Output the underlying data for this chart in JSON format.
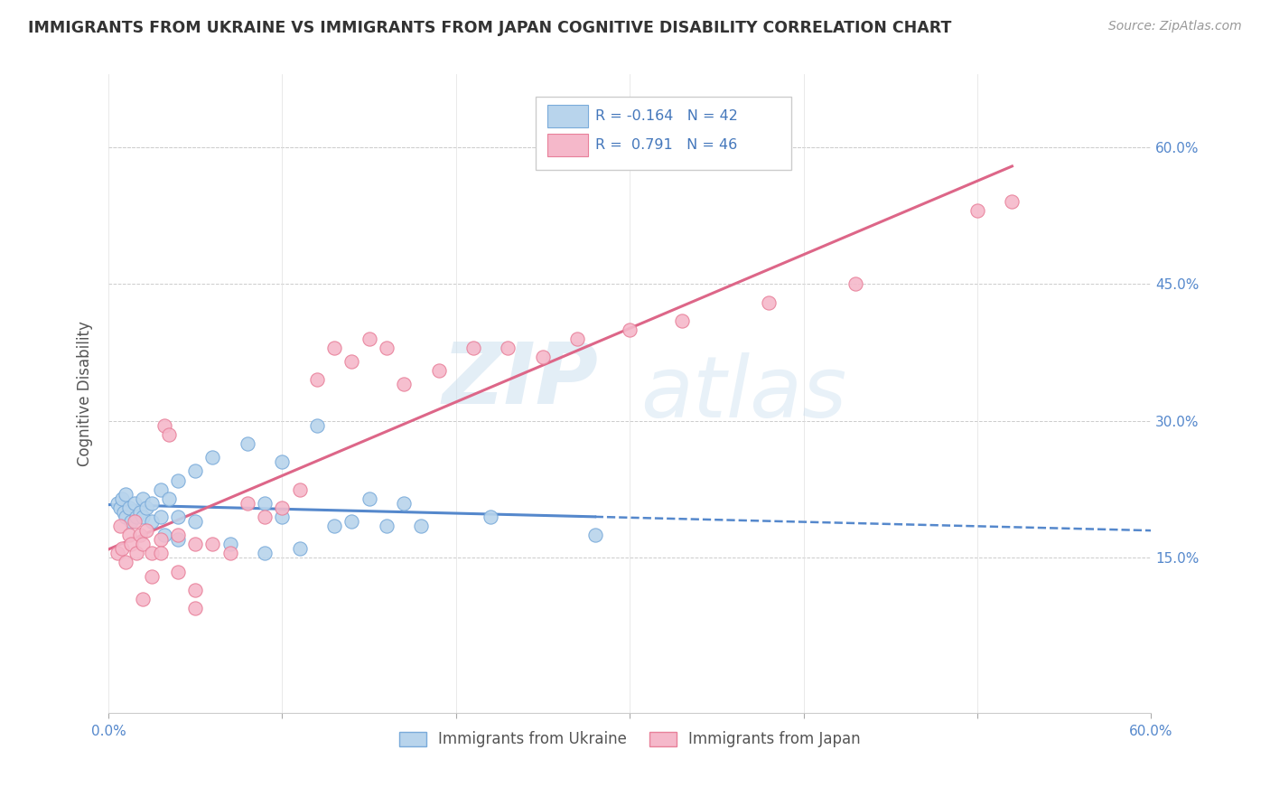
{
  "title": "IMMIGRANTS FROM UKRAINE VS IMMIGRANTS FROM JAPAN COGNITIVE DISABILITY CORRELATION CHART",
  "source": "Source: ZipAtlas.com",
  "ylabel": "Cognitive Disability",
  "x_min": 0.0,
  "x_max": 0.6,
  "y_min": -0.02,
  "y_max": 0.68,
  "x_ticks": [
    0.0,
    0.1,
    0.2,
    0.3,
    0.4,
    0.5,
    0.6
  ],
  "x_tick_labels": [
    "0.0%",
    "",
    "",
    "",
    "",
    "",
    "60.0%"
  ],
  "y_ticks_right": [
    0.15,
    0.3,
    0.45,
    0.6
  ],
  "y_tick_labels_right": [
    "15.0%",
    "30.0%",
    "45.0%",
    "60.0%"
  ],
  "ukraine_color": "#b8d4ec",
  "ukraine_color_edge": "#7aabda",
  "japan_color": "#f5b8ca",
  "japan_color_edge": "#e8809a",
  "ukraine_R": "-0.164",
  "ukraine_N": "42",
  "japan_R": "0.791",
  "japan_N": "46",
  "ukraine_line_color": "#5588cc",
  "japan_line_color": "#dd6688",
  "ukraine_scatter": [
    [
      0.005,
      0.21
    ],
    [
      0.007,
      0.205
    ],
    [
      0.008,
      0.215
    ],
    [
      0.009,
      0.2
    ],
    [
      0.01,
      0.22
    ],
    [
      0.01,
      0.195
    ],
    [
      0.012,
      0.205
    ],
    [
      0.013,
      0.19
    ],
    [
      0.015,
      0.21
    ],
    [
      0.016,
      0.195
    ],
    [
      0.018,
      0.2
    ],
    [
      0.02,
      0.215
    ],
    [
      0.02,
      0.195
    ],
    [
      0.022,
      0.205
    ],
    [
      0.025,
      0.21
    ],
    [
      0.025,
      0.19
    ],
    [
      0.03,
      0.225
    ],
    [
      0.03,
      0.195
    ],
    [
      0.032,
      0.175
    ],
    [
      0.035,
      0.215
    ],
    [
      0.04,
      0.235
    ],
    [
      0.04,
      0.195
    ],
    [
      0.04,
      0.17
    ],
    [
      0.05,
      0.245
    ],
    [
      0.05,
      0.19
    ],
    [
      0.06,
      0.26
    ],
    [
      0.07,
      0.165
    ],
    [
      0.08,
      0.275
    ],
    [
      0.09,
      0.21
    ],
    [
      0.09,
      0.155
    ],
    [
      0.1,
      0.255
    ],
    [
      0.1,
      0.195
    ],
    [
      0.11,
      0.16
    ],
    [
      0.12,
      0.295
    ],
    [
      0.13,
      0.185
    ],
    [
      0.14,
      0.19
    ],
    [
      0.15,
      0.215
    ],
    [
      0.16,
      0.185
    ],
    [
      0.17,
      0.21
    ],
    [
      0.18,
      0.185
    ],
    [
      0.22,
      0.195
    ],
    [
      0.28,
      0.175
    ]
  ],
  "japan_scatter": [
    [
      0.005,
      0.155
    ],
    [
      0.007,
      0.185
    ],
    [
      0.008,
      0.16
    ],
    [
      0.01,
      0.145
    ],
    [
      0.012,
      0.175
    ],
    [
      0.013,
      0.165
    ],
    [
      0.015,
      0.19
    ],
    [
      0.016,
      0.155
    ],
    [
      0.018,
      0.175
    ],
    [
      0.02,
      0.165
    ],
    [
      0.02,
      0.105
    ],
    [
      0.022,
      0.18
    ],
    [
      0.025,
      0.155
    ],
    [
      0.025,
      0.13
    ],
    [
      0.03,
      0.17
    ],
    [
      0.03,
      0.155
    ],
    [
      0.032,
      0.295
    ],
    [
      0.035,
      0.285
    ],
    [
      0.04,
      0.175
    ],
    [
      0.04,
      0.135
    ],
    [
      0.05,
      0.165
    ],
    [
      0.05,
      0.115
    ],
    [
      0.05,
      0.095
    ],
    [
      0.06,
      0.165
    ],
    [
      0.07,
      0.155
    ],
    [
      0.08,
      0.21
    ],
    [
      0.09,
      0.195
    ],
    [
      0.1,
      0.205
    ],
    [
      0.11,
      0.225
    ],
    [
      0.12,
      0.345
    ],
    [
      0.13,
      0.38
    ],
    [
      0.14,
      0.365
    ],
    [
      0.15,
      0.39
    ],
    [
      0.16,
      0.38
    ],
    [
      0.17,
      0.34
    ],
    [
      0.19,
      0.355
    ],
    [
      0.21,
      0.38
    ],
    [
      0.23,
      0.38
    ],
    [
      0.25,
      0.37
    ],
    [
      0.27,
      0.39
    ],
    [
      0.3,
      0.4
    ],
    [
      0.33,
      0.41
    ],
    [
      0.38,
      0.43
    ],
    [
      0.43,
      0.45
    ],
    [
      0.5,
      0.53
    ],
    [
      0.52,
      0.54
    ]
  ],
  "watermark_zip": "ZIP",
  "watermark_atlas": "atlas",
  "legend_ukraine_label": "Immigrants from Ukraine",
  "legend_japan_label": "Immigrants from Japan"
}
